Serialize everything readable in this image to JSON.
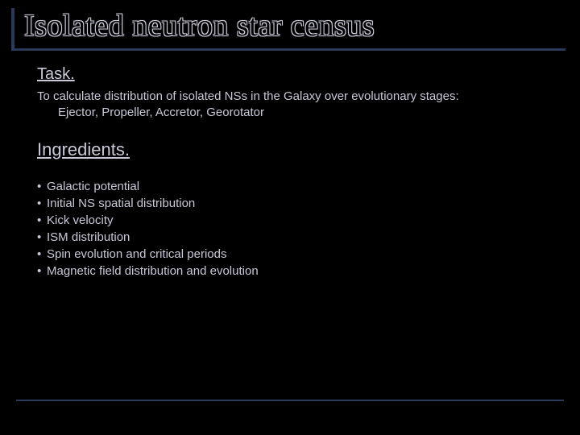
{
  "slide": {
    "title": "Isolated neutron star census",
    "background_color": "#000000",
    "text_color": "#c8c8d8",
    "accent_color": "#2a3a5a",
    "title_font": "Times New Roman",
    "body_font": "Arial",
    "title_fontsize": 38,
    "heading_fontsize": 20,
    "body_fontsize": 15
  },
  "task": {
    "heading": "Task.",
    "line1": "To calculate distribution of isolated NSs in the Galaxy over evolutionary stages:",
    "line2": "Ejector, Propeller, Accretor, Georotator"
  },
  "ingredients": {
    "heading": "Ingredients.",
    "items": [
      "Galactic potential",
      "Initial NS spatial distribution",
      "Kick velocity",
      "ISM distribution",
      "Spin evolution and critical periods",
      "Magnetic field distribution and evolution"
    ]
  }
}
